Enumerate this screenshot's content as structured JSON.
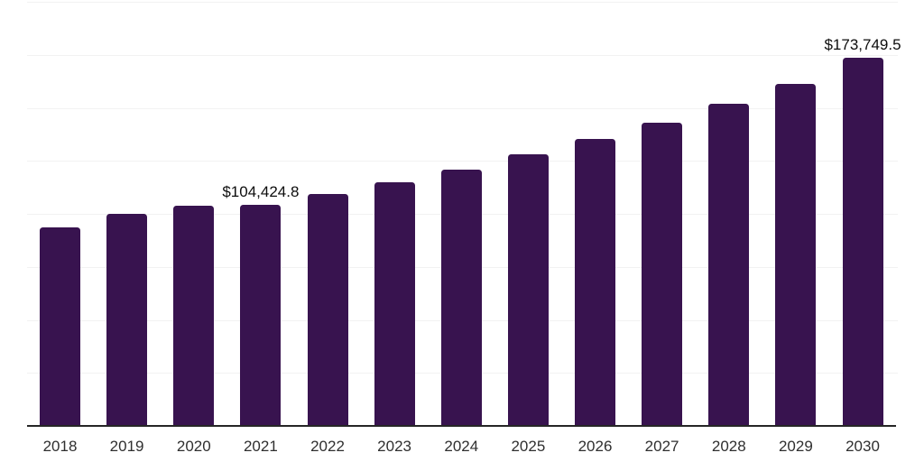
{
  "chart_data": {
    "type": "bar",
    "title": "",
    "xlabel": "",
    "ylabel": "",
    "categories": [
      "2018",
      "2019",
      "2020",
      "2021",
      "2022",
      "2023",
      "2024",
      "2025",
      "2026",
      "2027",
      "2028",
      "2029",
      "2030"
    ],
    "values": [
      93800,
      100100,
      104000,
      104424.8,
      109400,
      114900,
      120800,
      128000,
      135200,
      143200,
      152100,
      161400,
      173749.5
    ],
    "annotations": [
      {
        "index": 3,
        "text": "$104,424.8"
      },
      {
        "index": 12,
        "text": "$173,749.5"
      }
    ],
    "ylim": [
      0,
      200000
    ],
    "gridline_step": 25000,
    "grid": true,
    "legend": false,
    "bar_color": "#38134f",
    "gridline_color": "#f2f2f2",
    "axis_line_color": "#262626",
    "tick_label_color": "#2f2f2f",
    "annotation_color": "#0d0d0d"
  }
}
